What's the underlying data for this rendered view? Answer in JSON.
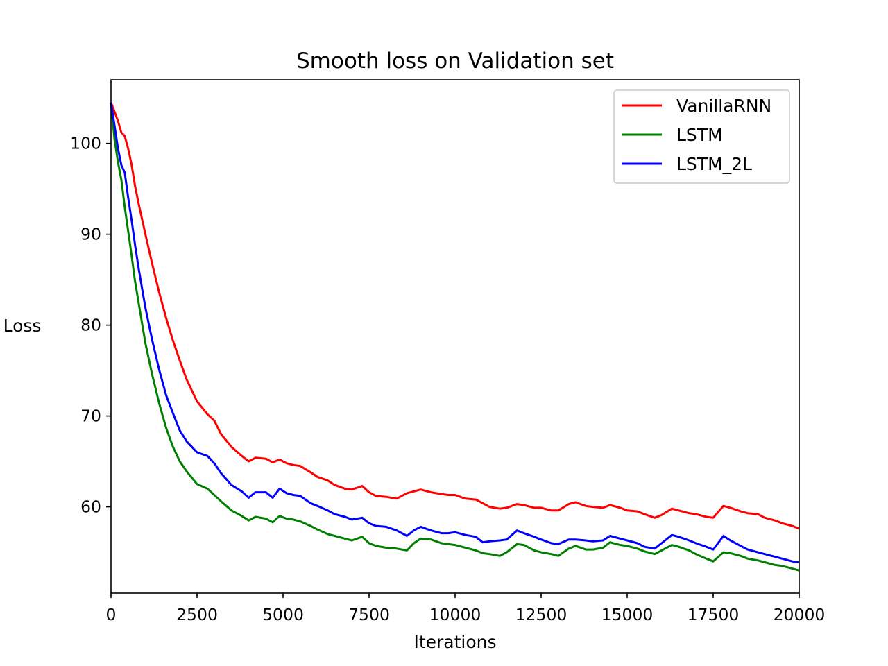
{
  "chart_data": {
    "type": "line",
    "title": "Smooth loss on Validation set",
    "xlabel": "Iterations",
    "ylabel": "Loss",
    "xlim": [
      0,
      20000
    ],
    "ylim": [
      50.5,
      107
    ],
    "xticks": [
      0,
      2500,
      5000,
      7500,
      10000,
      12500,
      15000,
      17500,
      20000
    ],
    "yticks": [
      60,
      70,
      80,
      90,
      100
    ],
    "xtick_labels": [
      "0",
      "2500",
      "5000",
      "7500",
      "10000",
      "12500",
      "15000",
      "17500",
      "20000"
    ],
    "ytick_labels": [
      "60",
      "70",
      "80",
      "90",
      "100"
    ],
    "grid": false,
    "legend_position": "top-right",
    "series": [
      {
        "name": "VanillaRNN",
        "color": "#ff0000",
        "x": [
          0,
          100,
          200,
          300,
          400,
          500,
          600,
          700,
          800,
          1000,
          1200,
          1400,
          1600,
          1800,
          2000,
          2200,
          2500,
          2800,
          3000,
          3200,
          3500,
          3800,
          4000,
          4200,
          4500,
          4700,
          4900,
          5100,
          5300,
          5500,
          5800,
          6000,
          6300,
          6500,
          6800,
          7000,
          7300,
          7500,
          7700,
          8000,
          8300,
          8600,
          8800,
          9000,
          9300,
          9600,
          9800,
          10000,
          10300,
          10600,
          10800,
          11000,
          11300,
          11500,
          11800,
          12000,
          12300,
          12500,
          12800,
          13000,
          13300,
          13500,
          13800,
          14000,
          14300,
          14500,
          14800,
          15000,
          15300,
          15500,
          15800,
          16000,
          16300,
          16500,
          16800,
          17000,
          17300,
          17500,
          17800,
          18000,
          18300,
          18500,
          18800,
          19000,
          19300,
          19500,
          19800,
          20000
        ],
        "y": [
          104.5,
          103.5,
          102.5,
          101.2,
          100.8,
          99.4,
          97.6,
          95.3,
          93.4,
          90.0,
          86.7,
          83.6,
          80.8,
          78.3,
          76.1,
          74.0,
          71.6,
          70.2,
          69.5,
          68.0,
          66.6,
          65.6,
          65.0,
          65.4,
          65.3,
          64.9,
          65.2,
          64.8,
          64.6,
          64.5,
          63.8,
          63.3,
          62.9,
          62.4,
          62.0,
          61.9,
          62.3,
          61.6,
          61.2,
          61.1,
          60.9,
          61.5,
          61.7,
          61.9,
          61.6,
          61.4,
          61.3,
          61.3,
          60.9,
          60.8,
          60.4,
          60.0,
          59.8,
          59.9,
          60.3,
          60.2,
          59.9,
          59.9,
          59.6,
          59.6,
          60.3,
          60.5,
          60.1,
          60.0,
          59.9,
          60.2,
          59.9,
          59.6,
          59.5,
          59.2,
          58.8,
          59.1,
          59.8,
          59.6,
          59.3,
          59.2,
          58.9,
          58.8,
          60.1,
          59.9,
          59.5,
          59.3,
          59.2,
          58.8,
          58.5,
          58.2,
          57.9,
          57.6
        ]
      },
      {
        "name": "LSTM",
        "color": "#008000",
        "x": [
          0,
          100,
          200,
          300,
          400,
          500,
          600,
          700,
          800,
          1000,
          1200,
          1400,
          1600,
          1800,
          2000,
          2200,
          2500,
          2800,
          3000,
          3200,
          3500,
          3800,
          4000,
          4200,
          4500,
          4700,
          4900,
          5100,
          5300,
          5500,
          5800,
          6000,
          6300,
          6500,
          6800,
          7000,
          7300,
          7500,
          7700,
          8000,
          8300,
          8600,
          8800,
          9000,
          9300,
          9600,
          9800,
          10000,
          10300,
          10600,
          10800,
          11000,
          11300,
          11500,
          11800,
          12000,
          12300,
          12500,
          12800,
          13000,
          13300,
          13500,
          13800,
          14000,
          14300,
          14500,
          14800,
          15000,
          15300,
          15500,
          15800,
          16000,
          16300,
          16500,
          16800,
          17000,
          17300,
          17500,
          17800,
          18000,
          18300,
          18500,
          18800,
          19000,
          19300,
          19500,
          19800,
          20000
        ],
        "y": [
          104.5,
          100.5,
          98.0,
          96.0,
          93.0,
          90.3,
          87.6,
          84.8,
          82.5,
          78.0,
          74.5,
          71.4,
          68.7,
          66.6,
          65.0,
          63.9,
          62.5,
          62.0,
          61.3,
          60.6,
          59.6,
          59.0,
          58.5,
          58.9,
          58.7,
          58.3,
          59.0,
          58.7,
          58.6,
          58.4,
          57.9,
          57.5,
          57.0,
          56.8,
          56.5,
          56.3,
          56.7,
          56.0,
          55.7,
          55.5,
          55.4,
          55.2,
          56.0,
          56.5,
          56.4,
          56.0,
          55.9,
          55.8,
          55.5,
          55.2,
          54.9,
          54.8,
          54.6,
          55.0,
          55.9,
          55.8,
          55.2,
          55.0,
          54.8,
          54.6,
          55.4,
          55.7,
          55.3,
          55.3,
          55.5,
          56.1,
          55.8,
          55.7,
          55.4,
          55.1,
          54.8,
          55.2,
          55.8,
          55.6,
          55.2,
          54.8,
          54.3,
          54.0,
          55.0,
          54.9,
          54.6,
          54.3,
          54.1,
          53.9,
          53.6,
          53.5,
          53.2,
          53.0
        ]
      },
      {
        "name": "LSTM_2L",
        "color": "#0000ff",
        "x": [
          0,
          100,
          200,
          300,
          400,
          500,
          600,
          700,
          800,
          1000,
          1200,
          1400,
          1600,
          1800,
          2000,
          2200,
          2500,
          2800,
          3000,
          3200,
          3500,
          3800,
          4000,
          4200,
          4500,
          4700,
          4900,
          5100,
          5300,
          5500,
          5800,
          6000,
          6300,
          6500,
          6800,
          7000,
          7300,
          7500,
          7700,
          8000,
          8300,
          8600,
          8800,
          9000,
          9300,
          9600,
          9800,
          10000,
          10300,
          10600,
          10800,
          11000,
          11300,
          11500,
          11800,
          12000,
          12300,
          12500,
          12800,
          13000,
          13300,
          13500,
          13800,
          14000,
          14300,
          14500,
          14800,
          15000,
          15300,
          15500,
          15800,
          16000,
          16300,
          16500,
          16800,
          17000,
          17300,
          17500,
          17800,
          18000,
          18300,
          18500,
          18800,
          19000,
          19300,
          19500,
          19800,
          20000
        ],
        "y": [
          104.5,
          102.0,
          99.5,
          97.6,
          96.8,
          94.0,
          91.5,
          88.8,
          86.3,
          81.9,
          78.3,
          75.1,
          72.3,
          70.3,
          68.4,
          67.2,
          66.0,
          65.6,
          64.8,
          63.7,
          62.4,
          61.7,
          61.0,
          61.6,
          61.6,
          61.0,
          62.0,
          61.5,
          61.3,
          61.2,
          60.4,
          60.1,
          59.6,
          59.2,
          58.9,
          58.6,
          58.8,
          58.2,
          57.9,
          57.8,
          57.4,
          56.8,
          57.4,
          57.8,
          57.4,
          57.1,
          57.1,
          57.2,
          56.9,
          56.7,
          56.1,
          56.2,
          56.3,
          56.4,
          57.4,
          57.1,
          56.7,
          56.4,
          56.0,
          55.9,
          56.4,
          56.4,
          56.3,
          56.2,
          56.3,
          56.8,
          56.5,
          56.3,
          56.0,
          55.6,
          55.4,
          56.0,
          56.9,
          56.7,
          56.3,
          56.0,
          55.6,
          55.3,
          56.8,
          56.3,
          55.7,
          55.3,
          55.0,
          54.8,
          54.5,
          54.3,
          54.0,
          53.9
        ]
      }
    ]
  }
}
